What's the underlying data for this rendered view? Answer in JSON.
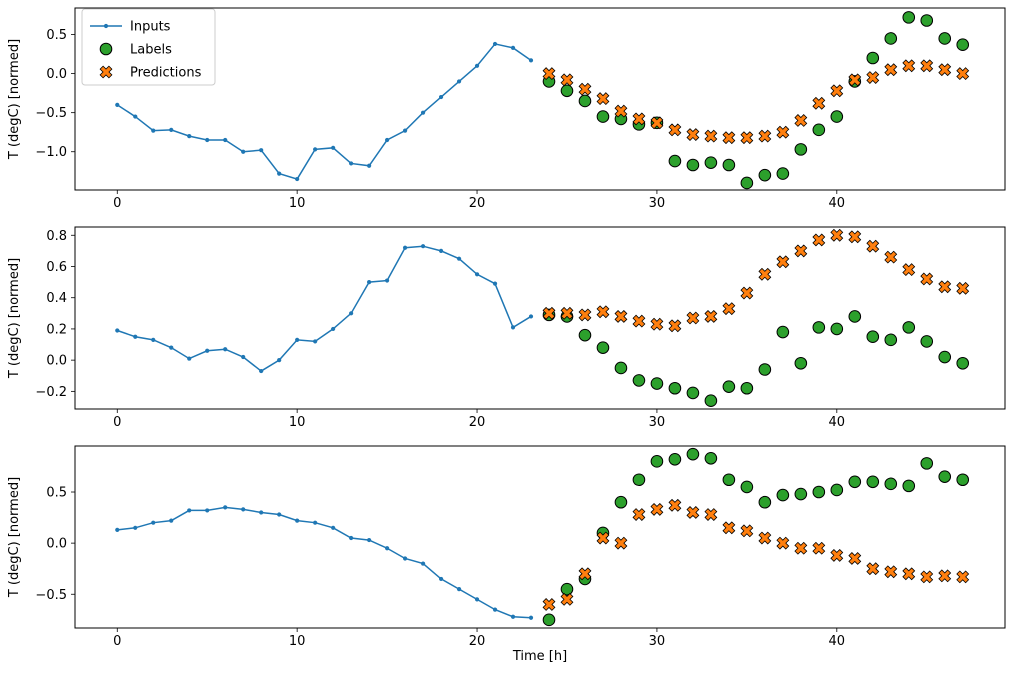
{
  "chart_data": [
    {
      "type": "line",
      "title": "",
      "ylabel": "T (degC) [normed]",
      "xlabel": "",
      "xlim": [
        -2.35,
        49.35
      ],
      "ylim": [
        -1.49,
        0.84
      ],
      "xticks": [
        0,
        10,
        20,
        30,
        40
      ],
      "yticks": [
        0.5,
        0.0,
        -0.5,
        -1.0
      ],
      "grid": false,
      "legend": {
        "position": "upper left",
        "labels": [
          "Inputs",
          "Labels",
          "Predictions"
        ]
      },
      "series": [
        {
          "name": "Inputs",
          "marker": "dot-line",
          "color": "#1f77b4",
          "x": [
            0,
            1,
            2,
            3,
            4,
            5,
            6,
            7,
            8,
            9,
            10,
            11,
            12,
            13,
            14,
            15,
            16,
            17,
            18,
            19,
            20,
            21,
            22,
            23
          ],
          "y": [
            -0.4,
            -0.55,
            -0.73,
            -0.72,
            -0.8,
            -0.85,
            -0.85,
            -1.0,
            -0.98,
            -1.28,
            -1.35,
            -0.97,
            -0.95,
            -1.15,
            -1.18,
            -0.85,
            -0.73,
            -0.5,
            -0.3,
            -0.1,
            0.1,
            0.38,
            0.33,
            0.17
          ]
        },
        {
          "name": "Labels",
          "marker": "circle",
          "color": "#2ca02c",
          "edge": "#000000",
          "x": [
            24,
            25,
            26,
            27,
            28,
            29,
            30,
            31,
            32,
            33,
            34,
            35,
            36,
            37,
            38,
            39,
            40,
            41,
            42,
            43,
            44,
            45,
            46,
            47
          ],
          "y": [
            -0.1,
            -0.22,
            -0.35,
            -0.55,
            -0.58,
            -0.65,
            -0.63,
            -1.12,
            -1.17,
            -1.14,
            -1.17,
            -1.4,
            -1.3,
            -1.28,
            -0.97,
            -0.72,
            -0.55,
            -0.1,
            0.2,
            0.45,
            0.72,
            0.68,
            0.45,
            0.37
          ]
        },
        {
          "name": "Predictions",
          "marker": "X",
          "color": "#ff7f0e",
          "edge": "#000000",
          "x": [
            24,
            25,
            26,
            27,
            28,
            29,
            30,
            31,
            32,
            33,
            34,
            35,
            36,
            37,
            38,
            39,
            40,
            41,
            42,
            43,
            44,
            45,
            46,
            47
          ],
          "y": [
            0.0,
            -0.08,
            -0.2,
            -0.32,
            -0.48,
            -0.58,
            -0.63,
            -0.72,
            -0.78,
            -0.8,
            -0.82,
            -0.82,
            -0.8,
            -0.75,
            -0.6,
            -0.38,
            -0.22,
            -0.08,
            -0.05,
            0.05,
            0.1,
            0.1,
            0.05,
            0.0
          ]
        }
      ]
    },
    {
      "type": "line",
      "title": "",
      "ylabel": "T (degC) [normed]",
      "xlabel": "",
      "xlim": [
        -2.35,
        49.35
      ],
      "ylim": [
        -0.313,
        0.853
      ],
      "xticks": [
        0,
        10,
        20,
        30,
        40
      ],
      "yticks": [
        0.8,
        0.6,
        0.4,
        0.2,
        0.0,
        -0.2
      ],
      "grid": false,
      "series": [
        {
          "name": "Inputs",
          "marker": "dot-line",
          "color": "#1f77b4",
          "x": [
            0,
            1,
            2,
            3,
            4,
            5,
            6,
            7,
            8,
            9,
            10,
            11,
            12,
            13,
            14,
            15,
            16,
            17,
            18,
            19,
            20,
            21,
            22,
            23
          ],
          "y": [
            0.19,
            0.15,
            0.13,
            0.08,
            0.01,
            0.06,
            0.07,
            0.02,
            -0.07,
            0.0,
            0.13,
            0.12,
            0.2,
            0.3,
            0.5,
            0.51,
            0.72,
            0.73,
            0.7,
            0.65,
            0.55,
            0.49,
            0.21,
            0.28
          ]
        },
        {
          "name": "Labels",
          "marker": "circle",
          "color": "#2ca02c",
          "edge": "#000000",
          "x": [
            24,
            25,
            26,
            27,
            28,
            29,
            30,
            31,
            32,
            33,
            34,
            35,
            36,
            37,
            38,
            39,
            40,
            41,
            42,
            43,
            44,
            45,
            46,
            47
          ],
          "y": [
            0.29,
            0.28,
            0.16,
            0.08,
            -0.05,
            -0.13,
            -0.15,
            -0.18,
            -0.21,
            -0.26,
            -0.17,
            -0.18,
            -0.06,
            0.18,
            -0.02,
            0.21,
            0.2,
            0.28,
            0.15,
            0.13,
            0.21,
            0.12,
            0.02,
            -0.02
          ]
        },
        {
          "name": "Predictions",
          "marker": "X",
          "color": "#ff7f0e",
          "edge": "#000000",
          "x": [
            24,
            25,
            26,
            27,
            28,
            29,
            30,
            31,
            32,
            33,
            34,
            35,
            36,
            37,
            38,
            39,
            40,
            41,
            42,
            43,
            44,
            45,
            46,
            47
          ],
          "y": [
            0.3,
            0.3,
            0.29,
            0.31,
            0.28,
            0.25,
            0.23,
            0.22,
            0.27,
            0.28,
            0.33,
            0.43,
            0.55,
            0.63,
            0.7,
            0.77,
            0.8,
            0.79,
            0.73,
            0.66,
            0.58,
            0.52,
            0.47,
            0.46
          ]
        }
      ]
    },
    {
      "type": "line",
      "title": "",
      "ylabel": "T (degC) [normed]",
      "xlabel": "Time [h]",
      "xlim": [
        -2.35,
        49.35
      ],
      "ylim": [
        -0.83,
        0.95
      ],
      "xticks": [
        0,
        10,
        20,
        30,
        40
      ],
      "yticks": [
        0.5,
        0.0,
        -0.5
      ],
      "grid": false,
      "series": [
        {
          "name": "Inputs",
          "marker": "dot-line",
          "color": "#1f77b4",
          "x": [
            0,
            1,
            2,
            3,
            4,
            5,
            6,
            7,
            8,
            9,
            10,
            11,
            12,
            13,
            14,
            15,
            16,
            17,
            18,
            19,
            20,
            21,
            22,
            23
          ],
          "y": [
            0.13,
            0.15,
            0.2,
            0.22,
            0.32,
            0.32,
            0.35,
            0.33,
            0.3,
            0.28,
            0.22,
            0.2,
            0.15,
            0.05,
            0.03,
            -0.05,
            -0.15,
            -0.2,
            -0.35,
            -0.45,
            -0.55,
            -0.65,
            -0.72,
            -0.73
          ]
        },
        {
          "name": "Labels",
          "marker": "circle",
          "color": "#2ca02c",
          "edge": "#000000",
          "x": [
            24,
            25,
            26,
            27,
            28,
            29,
            30,
            31,
            32,
            33,
            34,
            35,
            36,
            37,
            38,
            39,
            40,
            41,
            42,
            43,
            44,
            45,
            46,
            47
          ],
          "y": [
            -0.75,
            -0.45,
            -0.35,
            0.1,
            0.4,
            0.62,
            0.8,
            0.82,
            0.87,
            0.83,
            0.62,
            0.55,
            0.4,
            0.47,
            0.48,
            0.5,
            0.52,
            0.6,
            0.6,
            0.58,
            0.56,
            0.78,
            0.65,
            0.62
          ]
        },
        {
          "name": "Predictions",
          "marker": "X",
          "color": "#ff7f0e",
          "edge": "#000000",
          "x": [
            24,
            25,
            26,
            27,
            28,
            29,
            30,
            31,
            32,
            33,
            34,
            35,
            36,
            37,
            38,
            39,
            40,
            41,
            42,
            43,
            44,
            45,
            46,
            47
          ],
          "y": [
            -0.6,
            -0.55,
            -0.3,
            0.05,
            0.0,
            0.28,
            0.33,
            0.37,
            0.3,
            0.28,
            0.15,
            0.12,
            0.05,
            0.0,
            -0.05,
            -0.05,
            -0.12,
            -0.15,
            -0.25,
            -0.28,
            -0.3,
            -0.33,
            -0.32,
            -0.33
          ]
        }
      ]
    }
  ],
  "styles": {
    "line_color": "#1f77b4",
    "labels_color": "#2ca02c",
    "predictions_color": "#ff7f0e",
    "marker_edge": "#000000",
    "legend_border": "#cccccc",
    "axis_color": "#000000"
  }
}
